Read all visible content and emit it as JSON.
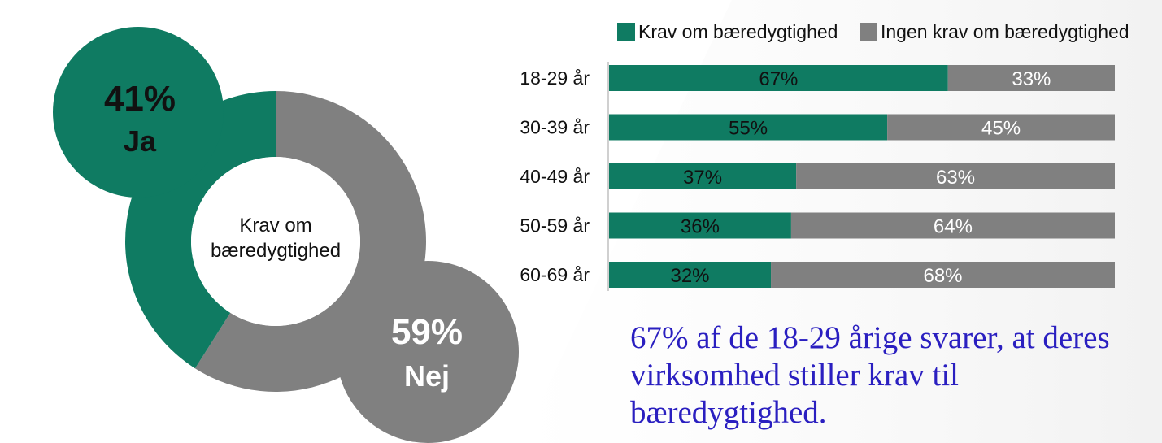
{
  "colors": {
    "green": "#0f7b62",
    "gray": "#808080",
    "text_dark": "#111111",
    "text_light": "#ffffff",
    "conclusion": "#2a1fc0"
  },
  "chart_data": [
    {
      "type": "pie",
      "center_label": [
        "Krav om",
        "bæredygtighed"
      ],
      "slices": [
        {
          "label": "Ja",
          "value": 41,
          "display": "41%",
          "color": "#0f7b62"
        },
        {
          "label": "Nej",
          "value": 59,
          "display": "59%",
          "color": "#808080"
        }
      ]
    },
    {
      "type": "bar",
      "orientation": "horizontal",
      "stacked": true,
      "categories": [
        "18-29 år",
        "30-39 år",
        "40-49 år",
        "50-59 år",
        "60-69 år"
      ],
      "series": [
        {
          "name": "Krav om bæredygtighed",
          "color": "#0f7b62",
          "values": [
            67,
            55,
            37,
            36,
            32
          ]
        },
        {
          "name": "Ingen krav om bæredygtighed",
          "color": "#808080",
          "values": [
            33,
            45,
            63,
            64,
            68
          ]
        }
      ],
      "value_suffix": "%",
      "xlim": [
        0,
        100
      ],
      "legend": "top"
    }
  ],
  "conclusion": "67% af de 18-29 årige svarer, at deres virksomhed stiller krav til bæredygtighed."
}
